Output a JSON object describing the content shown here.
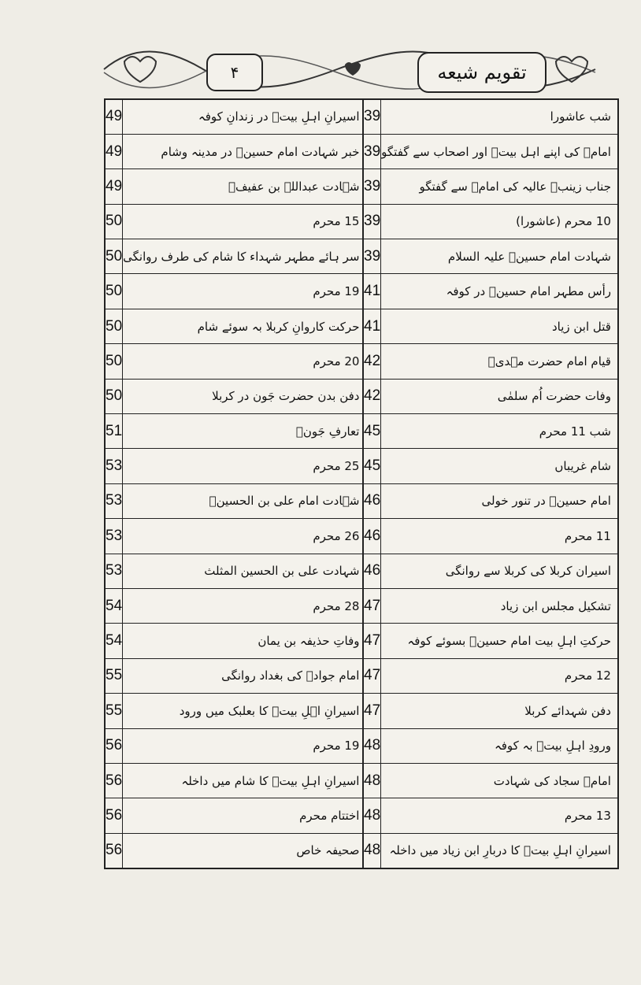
{
  "header": {
    "title": "تقویم شیعه",
    "page_number": "۴"
  },
  "right_table": {
    "rows": [
      [
        "شب عاشورا",
        39
      ],
      [
        "امامؑ کی اپنے اہل بیتؑ اور اصحاب سے گفتگو",
        39
      ],
      [
        "جناب زینبؑ عالیہ کی امامؑ سے گفتگو",
        39
      ],
      [
        "10 محرم (عاشورا)",
        39
      ],
      [
        "شہادت امام حسینؑ علیہ السلام",
        39
      ],
      [
        "رأس مطہر امام حسینؑ در کوفہ",
        41
      ],
      [
        "قتل ابن زیاد",
        41
      ],
      [
        "قیام امام حضرت مہدیؑ",
        42
      ],
      [
        "وفات حضرت اُم سلمٰی",
        42
      ],
      [
        "شب 11 محرم",
        45
      ],
      [
        "شام غریباں",
        45
      ],
      [
        "امام حسینؑ در تنور خولی",
        46
      ],
      [
        "11 محرم",
        46
      ],
      [
        "اسیران کربلا کی کربلا سے روانگی",
        46
      ],
      [
        "تشکیل مجلس ابن زیاد",
        47
      ],
      [
        "حرکتِ اہلِ بیت امام حسینؑ بسوئے کوفہ",
        47
      ],
      [
        "12 محرم",
        47
      ],
      [
        "دفن شہدائے کربلا",
        47
      ],
      [
        "ورودِ اہلِ بیتؑ بہ کوفہ",
        48
      ],
      [
        "امامؑ سجاد کی شہادت",
        48
      ],
      [
        "13 محرم",
        48
      ],
      [
        "اسیرانِ اہلِ بیتؑ کا دربارِ ابن زیاد میں داخلہ",
        48
      ]
    ]
  },
  "left_table": {
    "rows": [
      [
        "اسیرانِ اہلِ بیتؑ در زندانِ کوفہ",
        49
      ],
      [
        "خبر شہادت امام حسینؑ در مدینہ وشام",
        49
      ],
      [
        "شہادت عبداللہ بن عفیفؓ",
        49
      ],
      [
        "15 محرم",
        50
      ],
      [
        "سر ہائے مطہر شہداء کا شام کی طرف روانگی",
        50
      ],
      [
        "19 محرم",
        50
      ],
      [
        "حرکت کاروانِ کربلا بہ سوئے شام",
        50
      ],
      [
        "20 محرم",
        50
      ],
      [
        "دفن بدن حضرت جَون در کربلا",
        50
      ],
      [
        "تعارفِ جَونؓ",
        51
      ],
      [
        "25 محرم",
        53
      ],
      [
        "شہادت امام علی بن الحسینؑ",
        53
      ],
      [
        "26 محرم",
        53
      ],
      [
        "شہادت علی بن الحسین المثلث",
        53
      ],
      [
        "28 محرم",
        54
      ],
      [
        "وفاتِ حذیفہ بن یمان",
        54
      ],
      [
        "امام جوادؑ کی بغداد روانگی",
        55
      ],
      [
        "اسیرانِ اہلِ بیتؑ کا بعلبک میں ورود",
        55
      ],
      [
        "19 محرم",
        56
      ],
      [
        "اسیرانِ اہلِ بیتؑ کا شام میں داخلہ",
        56
      ],
      [
        "اختتام محرم",
        56
      ],
      [
        "صحیفہ خاص",
        56
      ]
    ]
  }
}
